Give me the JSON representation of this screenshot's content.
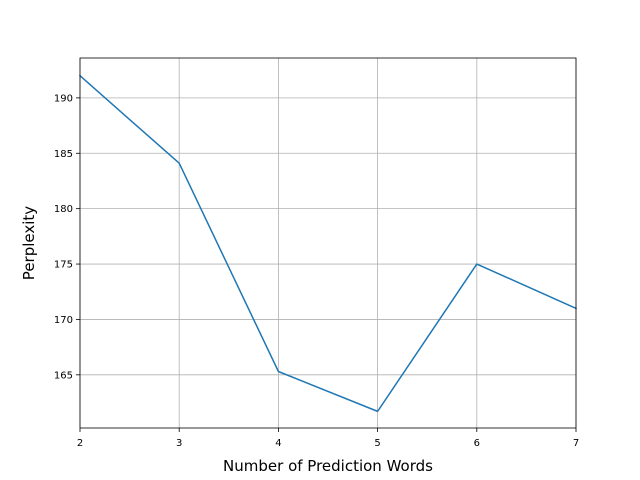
{
  "chart_data": {
    "type": "line",
    "xlabel": "Number of Prediction Words",
    "ylabel": "Perplexity",
    "x": [
      2,
      3,
      4,
      5,
      6,
      7
    ],
    "series": [
      {
        "values": [
          192.0,
          184.1,
          165.3,
          161.7,
          175.0,
          171.0
        ],
        "color": "#1f77b4"
      }
    ],
    "xlim": [
      2,
      7
    ],
    "ylim": [
      160.2,
      193.6
    ],
    "xticks": [
      2,
      3,
      4,
      5,
      6,
      7
    ],
    "yticks": [
      165,
      170,
      175,
      180,
      185,
      190
    ],
    "grid": true
  }
}
